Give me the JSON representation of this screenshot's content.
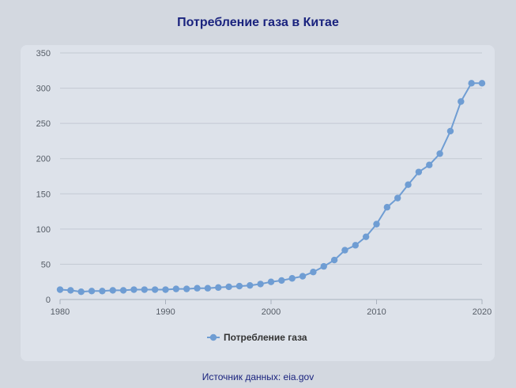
{
  "title": "Потребление газа в Китае",
  "source": "Источник данных: eia.gov",
  "colors": {
    "line": "#6f9dd3",
    "marker": "#6f9dd3",
    "grid": "#c3c9d3",
    "title": "#1a237e"
  },
  "chart_data": {
    "type": "line",
    "title": "Потребление газа в Китае",
    "xlabel": "",
    "ylabel": "",
    "xlim": [
      1980,
      2020
    ],
    "ylim": [
      0,
      350
    ],
    "yticks": [
      0,
      50,
      100,
      150,
      200,
      250,
      300,
      350
    ],
    "xticks": [
      1980,
      1990,
      2000,
      2010,
      2020
    ],
    "grid": true,
    "legend": "bottom-center",
    "series": [
      {
        "name": "Потребление газа",
        "x": [
          1980,
          1981,
          1982,
          1983,
          1984,
          1985,
          1986,
          1987,
          1988,
          1989,
          1990,
          1991,
          1992,
          1993,
          1994,
          1995,
          1996,
          1997,
          1998,
          1999,
          2000,
          2001,
          2002,
          2003,
          2004,
          2005,
          2006,
          2007,
          2008,
          2009,
          2010,
          2011,
          2012,
          2013,
          2014,
          2015,
          2016,
          2017,
          2018,
          2019,
          2020
        ],
        "y": [
          14,
          13,
          11,
          12,
          12,
          13,
          13,
          14,
          14,
          14,
          14,
          15,
          15,
          16,
          16,
          17,
          18,
          19,
          20,
          22,
          25,
          27,
          30,
          33,
          39,
          47,
          56,
          70,
          77,
          89,
          107,
          131,
          144,
          163,
          181,
          191,
          207,
          239,
          281,
          307,
          307
        ]
      }
    ]
  }
}
